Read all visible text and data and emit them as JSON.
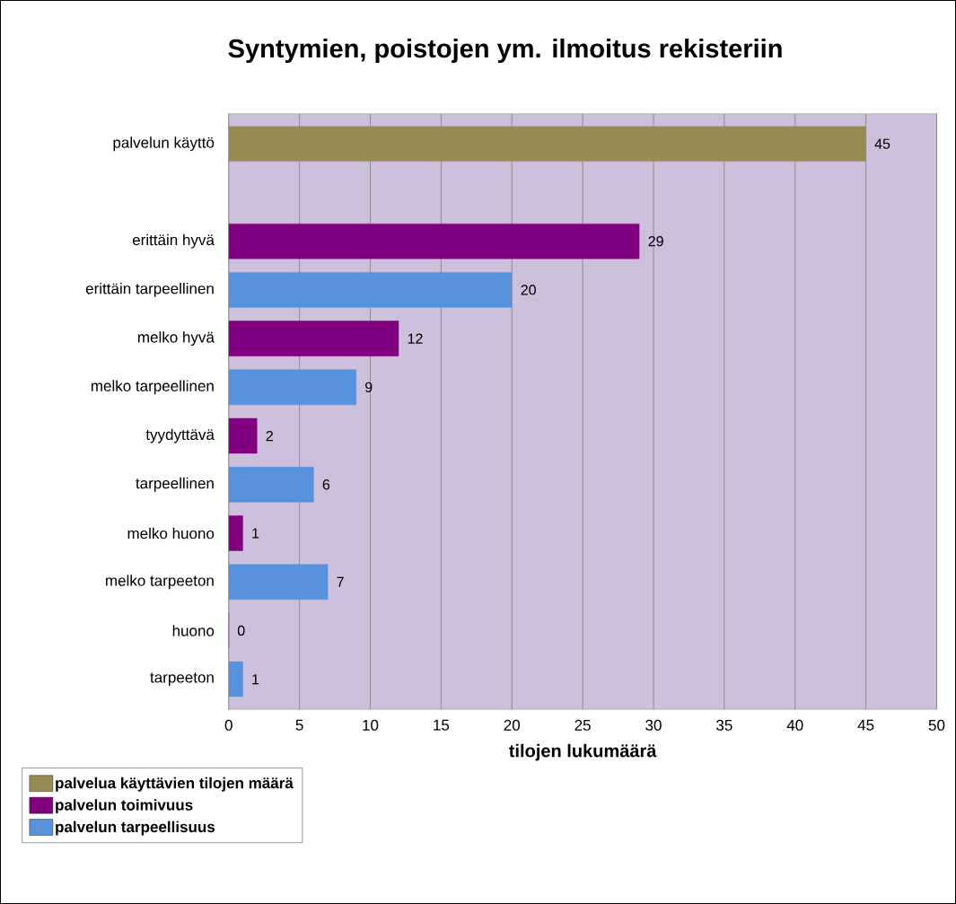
{
  "chart_data": {
    "type": "bar",
    "orientation": "horizontal",
    "title": "Syntymien, poistojen ym. ilmoitus rekisteriin",
    "xlabel": "tilojen lukumäärä",
    "categories": [
      "palvelun käyttö",
      null,
      "erittäin hyvä",
      "erittäin tarpeellinen",
      "melko hyvä",
      "melko tarpeellinen",
      "tyydyttävä",
      "tarpeellinen",
      "melko huono",
      "melko tarpeeton",
      "huono",
      "tarpeeton"
    ],
    "series": [
      {
        "name": "palvelua käyttävien tilojen määrä",
        "color": "#968b52",
        "values": [
          45,
          null,
          null,
          null,
          null,
          null,
          null,
          null,
          null,
          null,
          null,
          null
        ]
      },
      {
        "name": "palvelun toimivuus",
        "color": "#800080",
        "values": [
          null,
          null,
          29,
          null,
          12,
          null,
          2,
          null,
          1,
          null,
          0,
          null
        ]
      },
      {
        "name": "palvelun tarpeellisuus",
        "color": "#5891dc",
        "values": [
          null,
          null,
          null,
          20,
          null,
          9,
          null,
          6,
          null,
          7,
          null,
          1
        ]
      }
    ],
    "xlim": [
      0,
      50
    ],
    "xticks": [
      0,
      5,
      10,
      15,
      20,
      25,
      30,
      35,
      40,
      45,
      50
    ],
    "grid": "x",
    "legend": "bottom left",
    "data_labels": true
  }
}
